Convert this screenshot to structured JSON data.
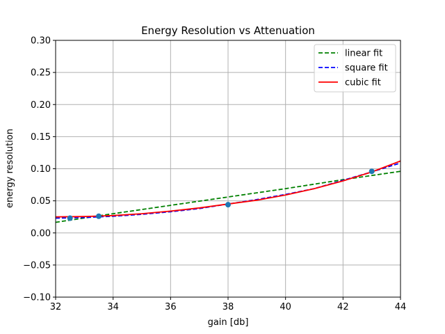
{
  "chart_data": {
    "type": "line",
    "title": "Energy Resolution vs Attenuation",
    "xlabel": "gain [db]",
    "ylabel": "energy resolution",
    "xlim": [
      32,
      44
    ],
    "ylim": [
      -0.1,
      0.3
    ],
    "xticks": [
      32,
      34,
      36,
      38,
      40,
      42,
      44
    ],
    "xtick_labels": [
      "32",
      "34",
      "36",
      "38",
      "40",
      "42",
      "44"
    ],
    "yticks": [
      -0.1,
      -0.05,
      0.0,
      0.05,
      0.1,
      0.15,
      0.2,
      0.25,
      0.3
    ],
    "ytick_labels": [
      "−0.10",
      "−0.05",
      "0.00",
      "0.05",
      "0.10",
      "0.15",
      "0.20",
      "0.25",
      "0.30"
    ],
    "grid": true,
    "legend_position": "top-right",
    "points": {
      "x": [
        32.5,
        33.5,
        38.0,
        43.0
      ],
      "y": [
        0.023,
        0.026,
        0.044,
        0.096
      ],
      "color": "#1f77b4"
    },
    "series": [
      {
        "name": "linear fit",
        "style": "dashed",
        "color": "#008000",
        "x": [
          32,
          34,
          36,
          38,
          40,
          42,
          44
        ],
        "y": [
          0.0165,
          0.03,
          0.043,
          0.056,
          0.069,
          0.083,
          0.096
        ]
      },
      {
        "name": "square fit",
        "style": "dashed",
        "color": "#0000ff",
        "x": [
          32,
          33,
          34,
          35,
          36,
          37,
          38,
          39,
          40,
          41,
          42,
          43,
          44
        ],
        "y": [
          0.023,
          0.024,
          0.026,
          0.029,
          0.033,
          0.038,
          0.045,
          0.052,
          0.06,
          0.069,
          0.082,
          0.095,
          0.109
        ]
      },
      {
        "name": "cubic fit",
        "style": "solid",
        "color": "#ff0000",
        "x": [
          32,
          33,
          34,
          35,
          36,
          37,
          38,
          39,
          40,
          41,
          42,
          43,
          44
        ],
        "y": [
          0.025,
          0.0255,
          0.027,
          0.03,
          0.034,
          0.039,
          0.045,
          0.051,
          0.059,
          0.069,
          0.081,
          0.095,
          0.112
        ]
      }
    ]
  }
}
